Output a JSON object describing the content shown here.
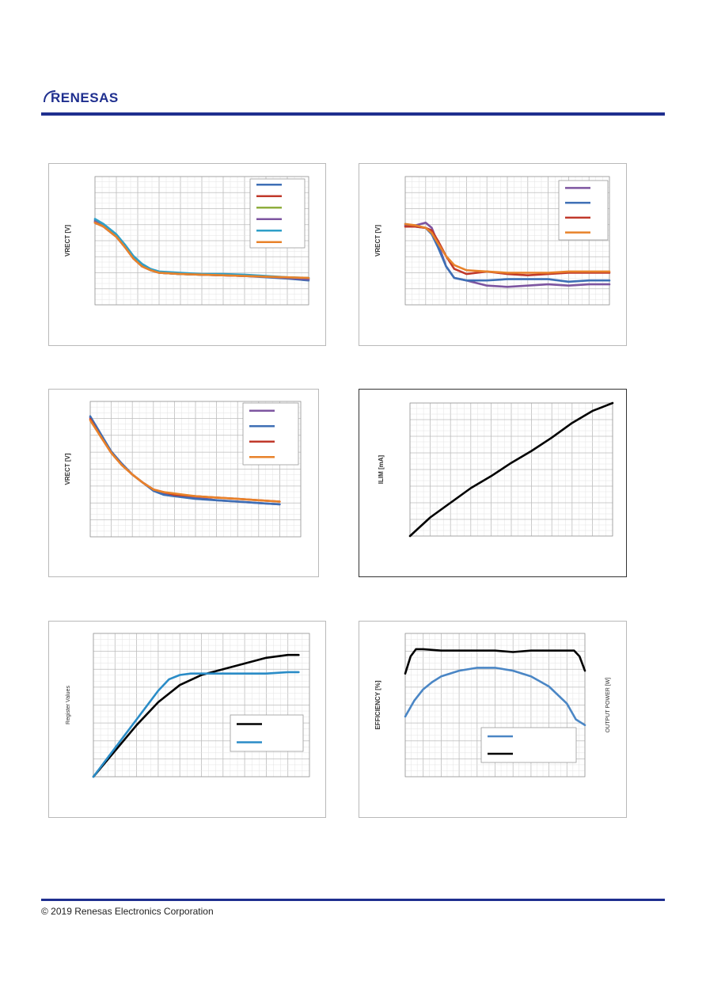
{
  "brand": {
    "name": "RENESAS",
    "color": "#1f2f8f"
  },
  "footer": {
    "copyright": "© 2019 Renesas Electronics Corporation"
  },
  "chart_data": [
    {
      "type": "line",
      "ylabel": "VRECT [V]",
      "grid": true,
      "legend": {
        "position": "top-right",
        "entries": 6
      },
      "xlim": [
        0,
        100
      ],
      "ylim": [
        0,
        100
      ],
      "series": [
        {
          "color": "#3e6fb5",
          "x": [
            0,
            4,
            10,
            14,
            18,
            22,
            26,
            30,
            40,
            50,
            60,
            70,
            80,
            90,
            100
          ],
          "y": [
            66,
            62,
            54,
            46,
            37,
            31,
            27,
            25,
            24,
            23.5,
            23,
            22.5,
            21.5,
            20.5,
            19
          ]
        },
        {
          "color": "#c0392b",
          "x": [
            0,
            4,
            10,
            14,
            18,
            22,
            26,
            30,
            40,
            50,
            60,
            70,
            80,
            90,
            100
          ],
          "y": [
            64,
            61,
            53,
            45,
            37,
            31,
            27,
            25,
            24,
            23.5,
            23,
            22.5,
            22,
            21,
            20
          ]
        },
        {
          "color": "#8fae3e",
          "x": [
            0,
            4,
            10,
            14,
            18,
            22,
            26,
            30,
            40,
            50,
            60,
            70,
            80,
            90,
            100
          ],
          "y": [
            65,
            62,
            54,
            46,
            37,
            31,
            27,
            25,
            24,
            23.5,
            23.5,
            23,
            22,
            21,
            21
          ]
        },
        {
          "color": "#7d55a0",
          "x": [
            0,
            4,
            10,
            14,
            18,
            22,
            26,
            30,
            40,
            50,
            60,
            70,
            80,
            90,
            100
          ],
          "y": [
            65,
            61,
            53,
            45,
            36,
            30,
            27,
            25,
            24,
            23.5,
            23,
            22.5,
            22,
            21,
            20
          ]
        },
        {
          "color": "#2f9fc8",
          "x": [
            0,
            4,
            10,
            14,
            18,
            22,
            26,
            30,
            40,
            50,
            60,
            70,
            80,
            90,
            100
          ],
          "y": [
            67,
            63,
            55,
            47,
            38,
            32,
            28,
            26,
            25,
            24,
            24,
            23.5,
            22.5,
            21.5,
            21
          ]
        },
        {
          "color": "#e8822a",
          "x": [
            0,
            4,
            10,
            14,
            18,
            22,
            26,
            30,
            40,
            50,
            60,
            70,
            80,
            90,
            100
          ],
          "y": [
            64,
            61,
            53,
            45,
            36,
            30,
            27,
            25,
            24,
            23.5,
            23,
            22.5,
            22,
            21.5,
            21
          ]
        }
      ]
    },
    {
      "type": "line",
      "ylabel": "VRECT [V]",
      "grid": true,
      "legend": {
        "position": "top-right",
        "entries": 4
      },
      "xlim": [
        0,
        100
      ],
      "ylim": [
        0,
        100
      ],
      "series": [
        {
          "color": "#7d55a0",
          "x": [
            0,
            5,
            10,
            13,
            16,
            20,
            24,
            30,
            40,
            50,
            60,
            70,
            80,
            90,
            100
          ],
          "y": [
            62,
            62,
            64,
            60,
            48,
            30,
            21,
            19,
            15,
            14,
            15,
            16,
            15,
            16,
            16
          ]
        },
        {
          "color": "#3e6fb5",
          "x": [
            0,
            5,
            10,
            13,
            16,
            20,
            24,
            30,
            40,
            50,
            60,
            70,
            80,
            90,
            100
          ],
          "y": [
            63,
            61,
            60,
            55,
            45,
            30,
            21,
            19,
            19,
            20,
            20,
            20,
            18,
            19,
            19
          ]
        },
        {
          "color": "#c0392b",
          "x": [
            0,
            5,
            10,
            13,
            16,
            20,
            24,
            30,
            40,
            50,
            60,
            70,
            80,
            90,
            100
          ],
          "y": [
            61,
            61,
            60,
            58,
            50,
            38,
            28,
            24,
            26,
            24,
            23,
            24,
            25,
            25,
            25
          ]
        },
        {
          "color": "#e8822a",
          "x": [
            0,
            5,
            10,
            13,
            16,
            20,
            24,
            30,
            40,
            50,
            60,
            70,
            80,
            90,
            100
          ],
          "y": [
            63,
            62,
            60,
            56,
            48,
            38,
            31,
            27,
            26,
            25,
            25,
            25,
            26,
            26,
            26
          ]
        }
      ]
    },
    {
      "type": "line",
      "ylabel": "VRECT [V]",
      "grid": true,
      "legend": {
        "position": "top-right",
        "entries": 4
      },
      "xlim": [
        0,
        100
      ],
      "ylim": [
        0,
        100
      ],
      "series": [
        {
          "color": "#7d55a0",
          "x": [
            0,
            5,
            10,
            15,
            20,
            25,
            30,
            35,
            40,
            50,
            60,
            70,
            80,
            90
          ],
          "y": [
            88,
            75,
            63,
            54,
            46,
            40,
            35,
            32,
            31,
            29,
            27,
            26,
            25,
            24
          ]
        },
        {
          "color": "#3e6fb5",
          "x": [
            0,
            5,
            10,
            15,
            20,
            25,
            30,
            35,
            40,
            50,
            60,
            70,
            80,
            90
          ],
          "y": [
            89,
            76,
            63,
            54,
            46,
            40,
            34,
            31,
            30,
            28,
            27,
            26,
            25,
            24
          ]
        },
        {
          "color": "#c0392b",
          "x": [
            0,
            5,
            10,
            15,
            20,
            25,
            30,
            35,
            40,
            50,
            60,
            70,
            80,
            90
          ],
          "y": [
            87,
            74,
            62,
            53,
            46,
            40,
            35,
            33,
            31,
            30,
            29,
            28,
            27,
            26
          ]
        },
        {
          "color": "#e8822a",
          "x": [
            0,
            5,
            10,
            15,
            20,
            25,
            30,
            35,
            40,
            50,
            60,
            70,
            80,
            90
          ],
          "y": [
            86,
            74,
            62,
            53,
            46,
            40,
            35,
            33,
            32,
            30,
            29,
            28,
            27,
            26
          ]
        }
      ]
    },
    {
      "type": "line",
      "ylabel": "ILIM [mA]",
      "grid": true,
      "xlim": [
        0,
        100
      ],
      "ylim": [
        0,
        100
      ],
      "series": [
        {
          "color": "#000000",
          "x": [
            0,
            10,
            20,
            30,
            40,
            50,
            60,
            70,
            80,
            90,
            100
          ],
          "y": [
            0,
            14,
            25,
            36,
            45,
            55,
            64,
            74,
            85,
            94,
            100
          ]
        }
      ]
    },
    {
      "type": "line",
      "ylabel": "Register Values",
      "grid": true,
      "legend": {
        "position": "right",
        "entries": 2
      },
      "xlim": [
        0,
        100
      ],
      "ylim": [
        0,
        100
      ],
      "series": [
        {
          "color": "#000000",
          "x": [
            0,
            10,
            20,
            30,
            40,
            50,
            60,
            70,
            80,
            90,
            95
          ],
          "y": [
            0,
            18,
            36,
            52,
            64,
            71,
            75,
            79,
            83,
            85,
            85
          ]
        },
        {
          "color": "#2a8cc7",
          "x": [
            0,
            10,
            20,
            30,
            35,
            40,
            45,
            50,
            60,
            70,
            80,
            90,
            95
          ],
          "y": [
            0,
            20,
            40,
            60,
            68,
            71,
            72,
            72,
            72,
            72,
            72,
            73,
            73
          ]
        }
      ]
    },
    {
      "type": "line",
      "ylabel": "EFFICIENCY [%]",
      "y2label": "OUTPUT POWER [W]",
      "grid": true,
      "legend": {
        "position": "bottom-right",
        "entries": 2
      },
      "xlim": [
        0,
        100
      ],
      "ylim": [
        0,
        100
      ],
      "series": [
        {
          "color": "#4a86c5",
          "x": [
            0,
            5,
            10,
            15,
            20,
            30,
            40,
            50,
            60,
            70,
            80,
            90,
            95,
            100
          ],
          "y": [
            42,
            53,
            61,
            66,
            70,
            74,
            76,
            76,
            74,
            70,
            63,
            51,
            40,
            36
          ]
        },
        {
          "color": "#000000",
          "x": [
            0,
            3,
            6,
            10,
            20,
            30,
            40,
            50,
            60,
            70,
            80,
            90,
            94,
            97,
            100
          ],
          "y": [
            72,
            84,
            89,
            89,
            88,
            88,
            88,
            88,
            87,
            88,
            88,
            88,
            88,
            84,
            74
          ]
        }
      ]
    }
  ]
}
